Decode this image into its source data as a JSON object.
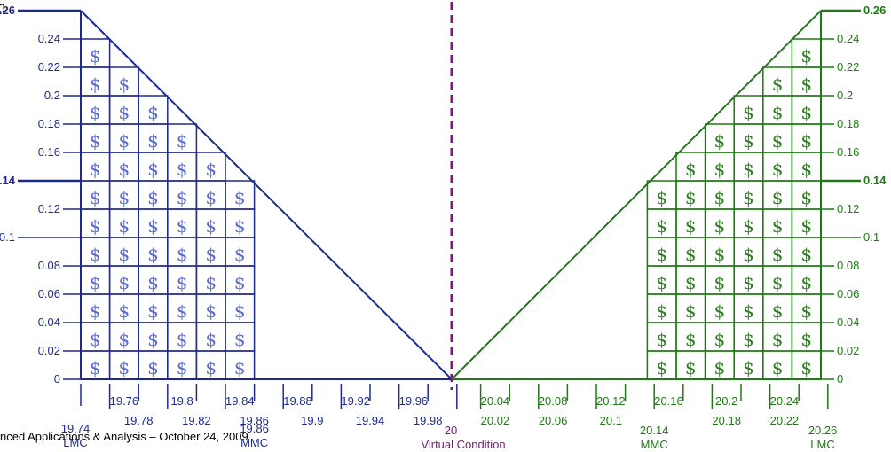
{
  "colors": {
    "left": "#1c2a8f",
    "left_dollar": "#5a6ad0",
    "right": "#1e7a12",
    "right_dollar": "#2f7d22",
    "center": "#7a1a78"
  },
  "cell_symbol": "$",
  "corner_text": "0",
  "footer": "nced Applications & Analysis – October 24, 2009",
  "chart_data": {
    "type": "diagram",
    "y_ticks": [
      "0",
      "0.02",
      "0.04",
      "0.06",
      "0.08",
      "0.1",
      "0.12",
      "0.14",
      "0.16",
      "0.18",
      "0.2",
      "0.22",
      "0.24",
      "0.26"
    ],
    "y_ticks_bold": [
      "0.14",
      "0.26"
    ],
    "y_range": [
      0,
      0.26
    ],
    "left_axis": {
      "x_range": [
        19.74,
        20
      ],
      "upper_ticks": [
        "19.76",
        "19.8",
        "19.84",
        "19.88",
        "19.92",
        "19.96"
      ],
      "lower_ticks": [
        "19.78",
        "19.82",
        "19.86",
        "19.9",
        "19.94",
        "19.98"
      ],
      "first_tick": "19.74",
      "first_tick_label": "LMC",
      "mmc_tick": "19.86",
      "mmc_label": "MMC",
      "dollar_columns": [
        12,
        11,
        10,
        9,
        8,
        7
      ]
    },
    "right_axis": {
      "x_range": [
        20,
        20.26
      ],
      "upper_ticks": [
        "20.04",
        "20.08",
        "20.12",
        "20.16",
        "20.2",
        "20.24"
      ],
      "lower_ticks": [
        "20.02",
        "20.06",
        "20.1",
        "20.18",
        "20.22"
      ],
      "mmc_tick": "20.14",
      "mmc_label": "MMC",
      "last_tick": "20.26",
      "last_tick_label": "LMC",
      "dollar_columns": [
        7,
        8,
        9,
        10,
        11,
        12
      ]
    },
    "center": {
      "value": "20",
      "label": "Virtual Condition"
    }
  }
}
